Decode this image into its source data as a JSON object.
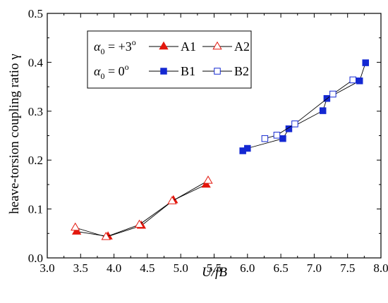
{
  "chart_data": {
    "type": "line",
    "xlabel": "U/fB",
    "ylabel": "heave-torsion coupling ratio γ",
    "xlim": [
      3.0,
      8.0
    ],
    "ylim": [
      0.0,
      0.5
    ],
    "xticks": [
      "3.0",
      "3.5",
      "4.0",
      "4.5",
      "5.0",
      "5.5",
      "6.0",
      "6.5",
      "7.0",
      "7.5",
      "8.0"
    ],
    "yticks": [
      "0.0",
      "0.1",
      "0.2",
      "0.3",
      "0.4",
      "0.5"
    ],
    "grid": false,
    "legend_position": "top-left",
    "legend_groups": [
      {
        "label_symbol": "α",
        "label_sub": "0",
        "label_rest": " = +3",
        "label_sup": "o"
      },
      {
        "label_symbol": "α",
        "label_sub": "0",
        "label_rest": " =  0",
        "label_sup": "o"
      }
    ],
    "series": [
      {
        "name": "A1",
        "color": "#e3170d",
        "marker": "triangle",
        "filled": true,
        "x": [
          3.44,
          3.91,
          4.41,
          4.89,
          5.38
        ],
        "y": [
          0.054,
          0.044,
          0.066,
          0.118,
          0.15
        ]
      },
      {
        "name": "A2",
        "color": "#e3170d",
        "marker": "triangle",
        "filled": false,
        "x": [
          3.42,
          3.88,
          4.38,
          4.87,
          5.41
        ],
        "y": [
          0.062,
          0.043,
          0.068,
          0.116,
          0.158
        ]
      },
      {
        "name": "B1",
        "color": "#1428d2",
        "marker": "square",
        "filled": true,
        "x": [
          5.93,
          6.0,
          6.53,
          6.62,
          7.13,
          7.19,
          7.68,
          7.77
        ],
        "y": [
          0.219,
          0.224,
          0.244,
          0.264,
          0.301,
          0.326,
          0.362,
          0.399
        ]
      },
      {
        "name": "B2",
        "color": "#1428d2",
        "marker": "square",
        "filled": false,
        "x": [
          6.26,
          6.44,
          6.71,
          7.28,
          7.58
        ],
        "y": [
          0.244,
          0.251,
          0.274,
          0.335,
          0.364
        ]
      }
    ]
  }
}
